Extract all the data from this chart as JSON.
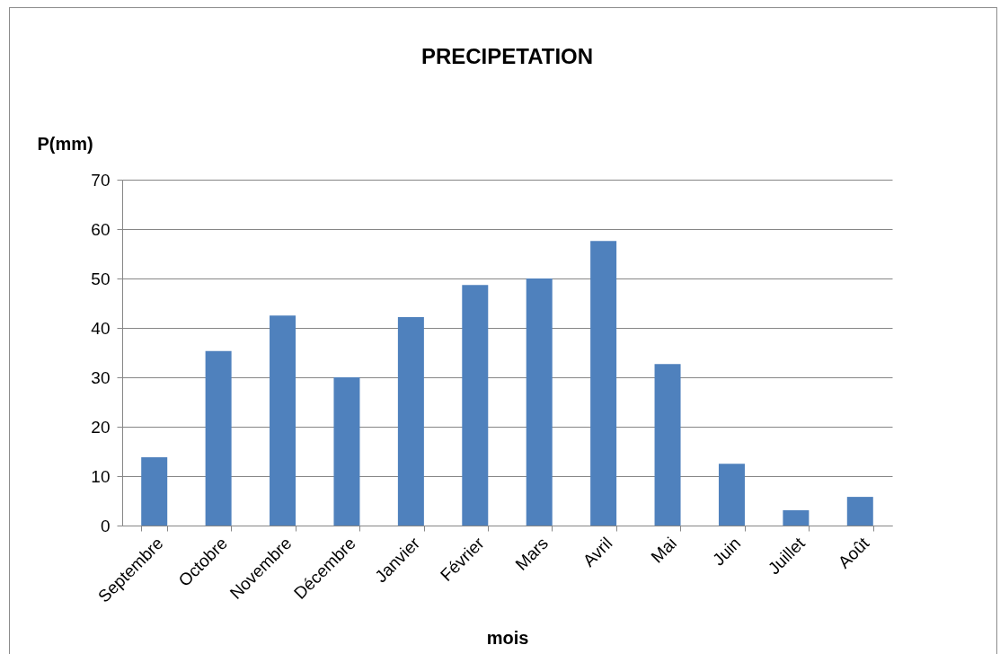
{
  "chart_data": {
    "type": "bar",
    "title": "PRECIPETATION",
    "xlabel": "mois",
    "ylabel": "P(mm)",
    "categories": [
      "Septembre",
      "Octobre",
      "Novembre",
      "Décembre",
      "Janvier",
      "Février",
      "Mars",
      "Avril",
      "Mai",
      "Juin",
      "Juillet",
      "Août"
    ],
    "values": [
      13.8,
      35.3,
      42.5,
      30.0,
      42.2,
      48.7,
      50.0,
      57.6,
      32.7,
      12.5,
      3.1,
      5.8
    ],
    "color": "#4f81bd",
    "ylim": [
      0,
      70
    ],
    "yticks": [
      0,
      10,
      20,
      30,
      40,
      50,
      60,
      70
    ],
    "grid": "y"
  }
}
